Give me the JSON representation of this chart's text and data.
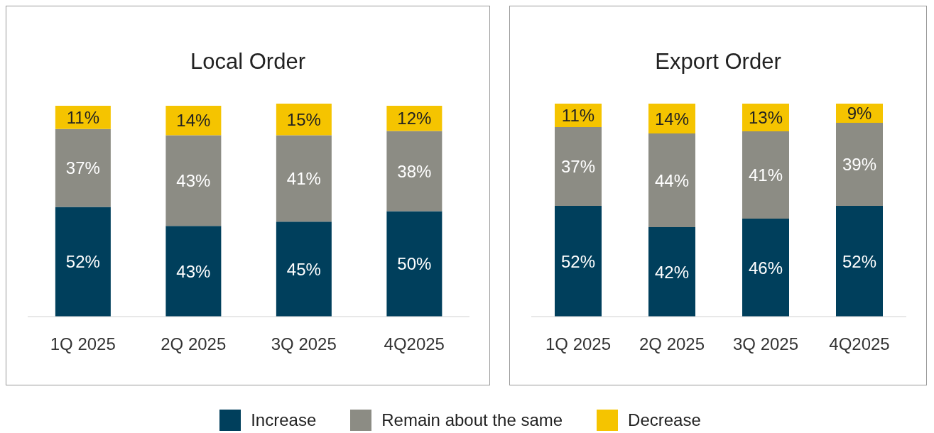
{
  "chart_data": [
    {
      "type": "bar",
      "title": "Local Order",
      "categories": [
        "1Q 2025",
        "2Q 2025",
        "3Q 2025",
        "4Q2025"
      ],
      "stacked": true,
      "series": [
        {
          "color": "#003f5c",
          "values": [
            52,
            43,
            45,
            50
          ],
          "value_labels": [
            "52%",
            "43%",
            "45%",
            "50%"
          ]
        },
        {
          "color": "#8c8c84",
          "values": [
            37,
            43,
            41,
            38
          ],
          "value_labels": [
            "37%",
            "43%",
            "41%",
            "38%"
          ]
        },
        {
          "color": "#f5c400",
          "values": [
            11,
            14,
            15,
            12
          ],
          "value_labels": [
            "11%",
            "14%",
            "15%",
            "12%"
          ]
        }
      ]
    },
    {
      "type": "bar",
      "title": "Export Order",
      "categories": [
        "1Q 2025",
        "2Q 2025",
        "3Q 2025",
        "4Q2025"
      ],
      "stacked": true,
      "legend": "bottom",
      "series": [
        {
          "name": "Increase",
          "color": "#003f5c",
          "values": [
            52,
            42,
            46,
            52
          ],
          "value_labels": [
            "52%",
            "42%",
            "46%",
            "52%"
          ]
        },
        {
          "name": "Remain about the same",
          "color": "#8c8c84",
          "values": [
            37,
            44,
            41,
            39
          ],
          "value_labels": [
            "37%",
            "44%",
            "41%",
            "39%"
          ]
        },
        {
          "name": "Decrease",
          "color": "#f5c400",
          "values": [
            11,
            14,
            13,
            9
          ],
          "value_labels": [
            "11%",
            "14%",
            "13%",
            "9%"
          ]
        }
      ]
    }
  ]
}
